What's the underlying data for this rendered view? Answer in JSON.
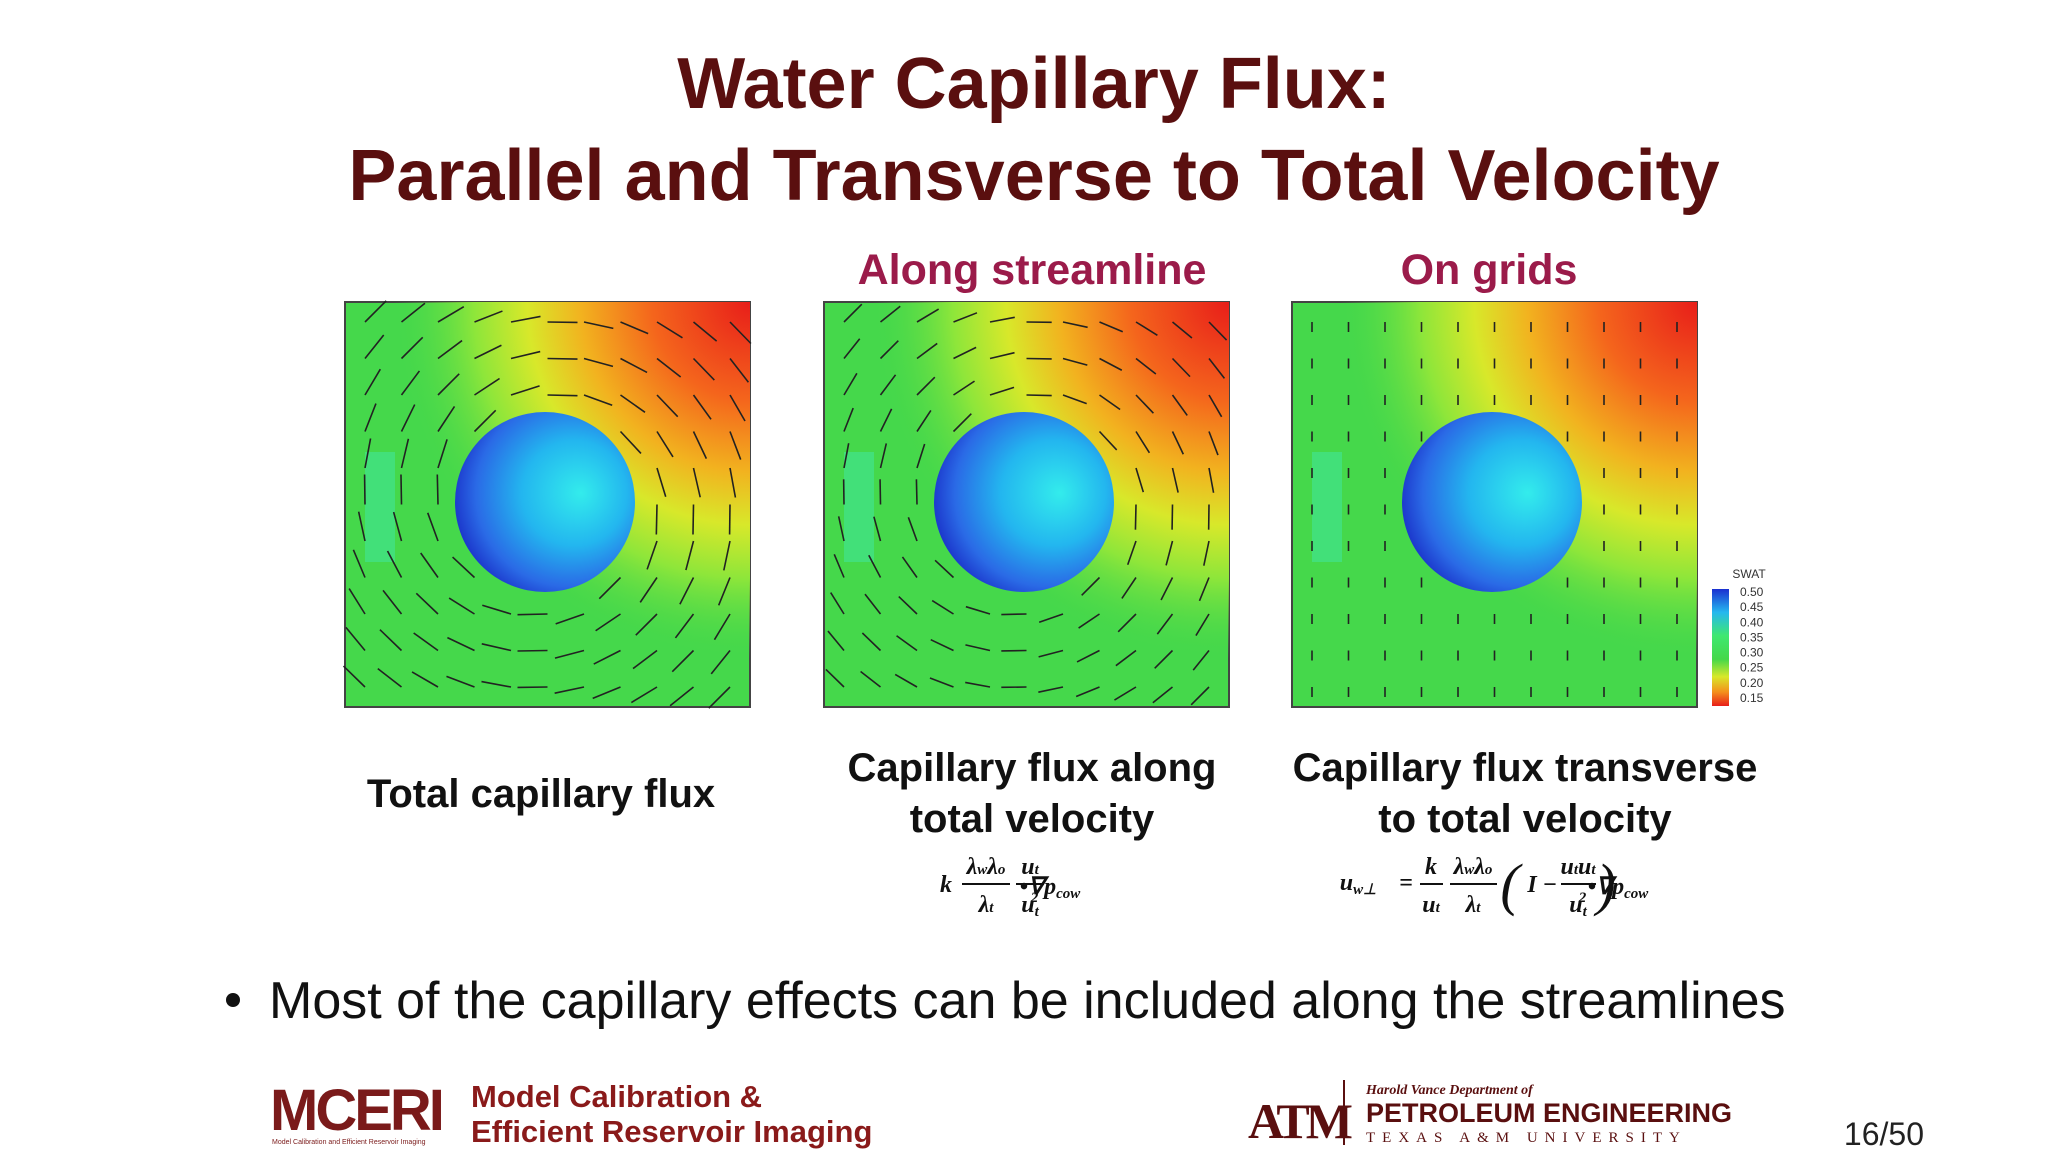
{
  "title": {
    "line1": "Water Capillary Flux:",
    "line2": "Parallel and Transverse to Total Velocity"
  },
  "panel_headings": [
    "Along streamline",
    "On grids"
  ],
  "captions": [
    [
      "Total capillary flux"
    ],
    [
      "Capillary flux along",
      "total velocity"
    ],
    [
      "Capillary flux transverse",
      "to total velocity"
    ]
  ],
  "colorbar": {
    "title": "SWAT",
    "labels": [
      "0.50",
      "0.45",
      "0.40",
      "0.35",
      "0.30",
      "0.25",
      "0.20",
      "0.15"
    ]
  },
  "formula1": {
    "k": "k",
    "num1": [
      "λ",
      "w",
      "λ",
      "o"
    ],
    "den1": [
      "λ",
      "t"
    ],
    "num2": [
      "u",
      "t"
    ],
    "den2": [
      "u",
      "t",
      "2"
    ],
    "op": "•∇p",
    "op_sub": "cow"
  },
  "formula2": {
    "lhs": [
      "u",
      "w⊥"
    ],
    "eq": "=",
    "num1": "k",
    "den1": [
      "u",
      "t"
    ],
    "num2": [
      "λ",
      "w",
      "λ",
      "o"
    ],
    "den2": [
      "λ",
      "t"
    ],
    "open": "(",
    "ident": "I",
    "minus": "−",
    "num3": [
      "u",
      "t",
      "u",
      "t"
    ],
    "den3": [
      "u",
      "t",
      "2"
    ],
    "close": ")",
    "op": "•∇p",
    "op_sub": "cow"
  },
  "bullet": "Most of the capillary effects can be included along the streamlines",
  "footer": {
    "mceri": "MCERI",
    "mceri_tagline": "Model Calibration and Efficient Reservoir Imaging",
    "group_line1": "Model Calibration &",
    "group_line2": "Efficient Reservoir Imaging",
    "logo": "ATM",
    "department": "Harold Vance Department of",
    "program": "PETROLEUM ENGINEERING",
    "university": "TEXAS A&M UNIVERSITY"
  },
  "page_number": "16/50"
}
